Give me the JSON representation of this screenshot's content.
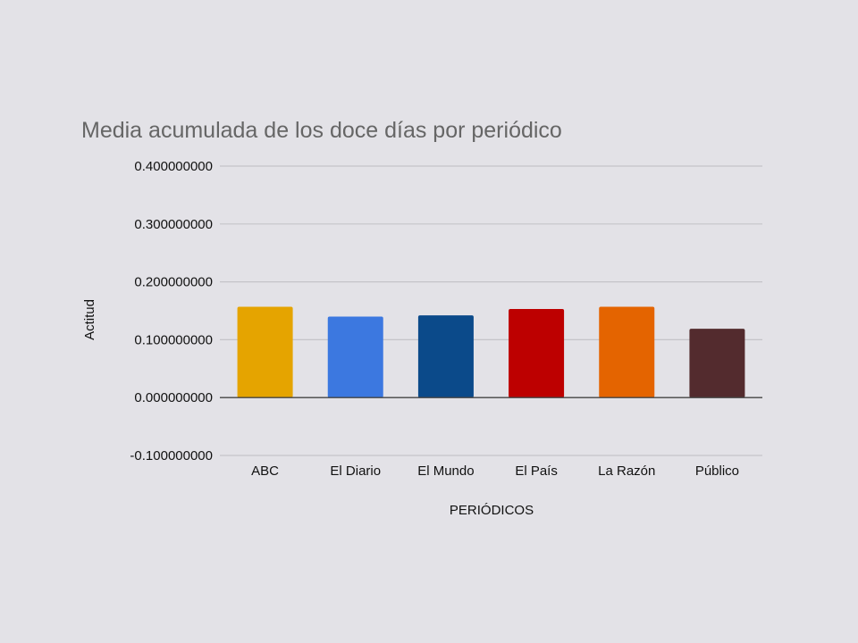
{
  "chart_data": {
    "type": "bar",
    "title": "Media acumulada de los doce días por periódico",
    "xlabel": "PERIÓDICOS",
    "ylabel": "Actitud",
    "categories": [
      "ABC",
      "El Diario",
      "El Mundo",
      "El País",
      "La Razón",
      "Público"
    ],
    "values": [
      0.157,
      0.14,
      0.142,
      0.153,
      0.157,
      0.119
    ],
    "colors": [
      "#e5a400",
      "#3c78e0",
      "#0b4a8a",
      "#bd0000",
      "#e46400",
      "#532b2e"
    ],
    "ylim": [
      -0.1,
      0.4
    ],
    "yticks": [
      -0.1,
      0.0,
      0.1,
      0.2,
      0.3,
      0.4
    ],
    "ytick_labels": [
      "-0.100000000",
      "0.000000000",
      "0.100000000",
      "0.200000000",
      "0.300000000",
      "0.400000000"
    ],
    "grid": true,
    "legend": "none"
  }
}
